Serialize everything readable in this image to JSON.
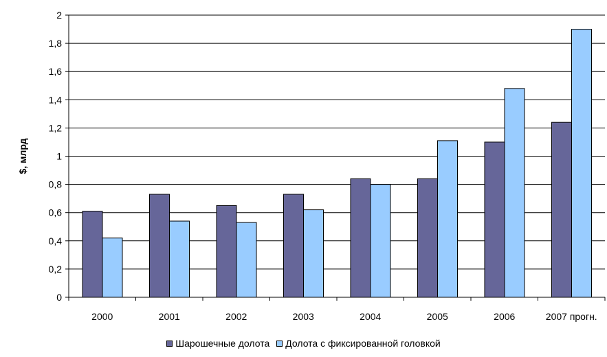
{
  "chart_data": {
    "type": "bar",
    "title": "",
    "xlabel": "",
    "ylabel": "$, млрд",
    "ylim": [
      0,
      2
    ],
    "yticks": [
      0,
      0.2,
      0.4,
      0.6,
      0.8,
      1,
      1.2,
      1.4,
      1.6,
      1.8,
      2
    ],
    "ytick_labels": [
      "0",
      "0,2",
      "0,4",
      "0,6",
      "0,8",
      "1",
      "1,2",
      "1,4",
      "1,6",
      "1,8",
      "2"
    ],
    "categories": [
      "2000",
      "2001",
      "2002",
      "2003",
      "2004",
      "2005",
      "2006",
      "2007 прогн."
    ],
    "series": [
      {
        "name": "Шарошечные долота",
        "color": "#666699",
        "values": [
          0.61,
          0.73,
          0.65,
          0.73,
          0.84,
          0.84,
          1.1,
          1.24
        ]
      },
      {
        "name": "Долота с фиксированной головкой",
        "color": "#99ccff",
        "values": [
          0.42,
          0.54,
          0.53,
          0.62,
          0.8,
          1.11,
          1.48,
          1.9
        ]
      }
    ],
    "grid": true,
    "legend_position": "bottom"
  }
}
